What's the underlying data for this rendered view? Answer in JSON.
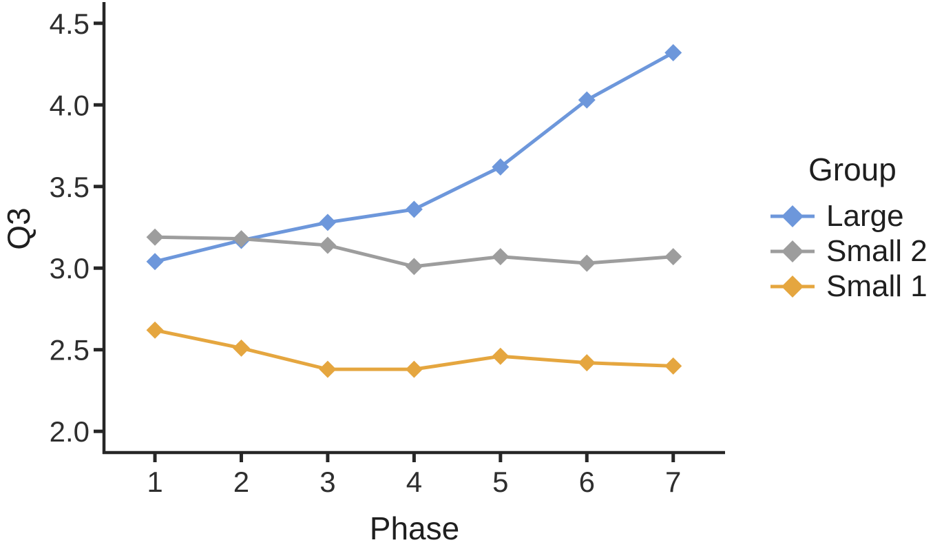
{
  "figure": {
    "background": "#ffffff"
  },
  "chart_data": {
    "type": "line",
    "title": "",
    "xlabel": "Phase",
    "ylabel": "Q3",
    "x": [
      1,
      2,
      3,
      4,
      5,
      6,
      7
    ],
    "xticks": [
      "1",
      "2",
      "3",
      "4",
      "5",
      "6",
      "7"
    ],
    "yticks": [
      2.0,
      2.5,
      3.0,
      3.5,
      4.0,
      4.5
    ],
    "ytick_labels": [
      "2.0",
      "2.5",
      "3.0",
      "3.5",
      "4.0",
      "4.5"
    ],
    "xlim": [
      0.41,
      7.6
    ],
    "ylim": [
      1.87,
      4.63
    ],
    "grid": false,
    "marker": "diamond",
    "axis_color": "#262626",
    "text_color": "#2e2e2e",
    "legend": {
      "title": "Group",
      "position": "right",
      "entries": [
        "Large",
        "Small 2",
        "Small 1"
      ]
    },
    "series": [
      {
        "name": "Large",
        "color": "#6D97DB",
        "values": [
          3.04,
          3.17,
          3.28,
          3.36,
          3.62,
          4.03,
          4.32
        ]
      },
      {
        "name": "Small 2",
        "color": "#9D9D9D",
        "values": [
          3.19,
          3.18,
          3.14,
          3.01,
          3.07,
          3.03,
          3.07
        ]
      },
      {
        "name": "Small 1",
        "color": "#E5A63F",
        "values": [
          2.62,
          2.51,
          2.38,
          2.38,
          2.46,
          2.42,
          2.4
        ]
      }
    ]
  }
}
